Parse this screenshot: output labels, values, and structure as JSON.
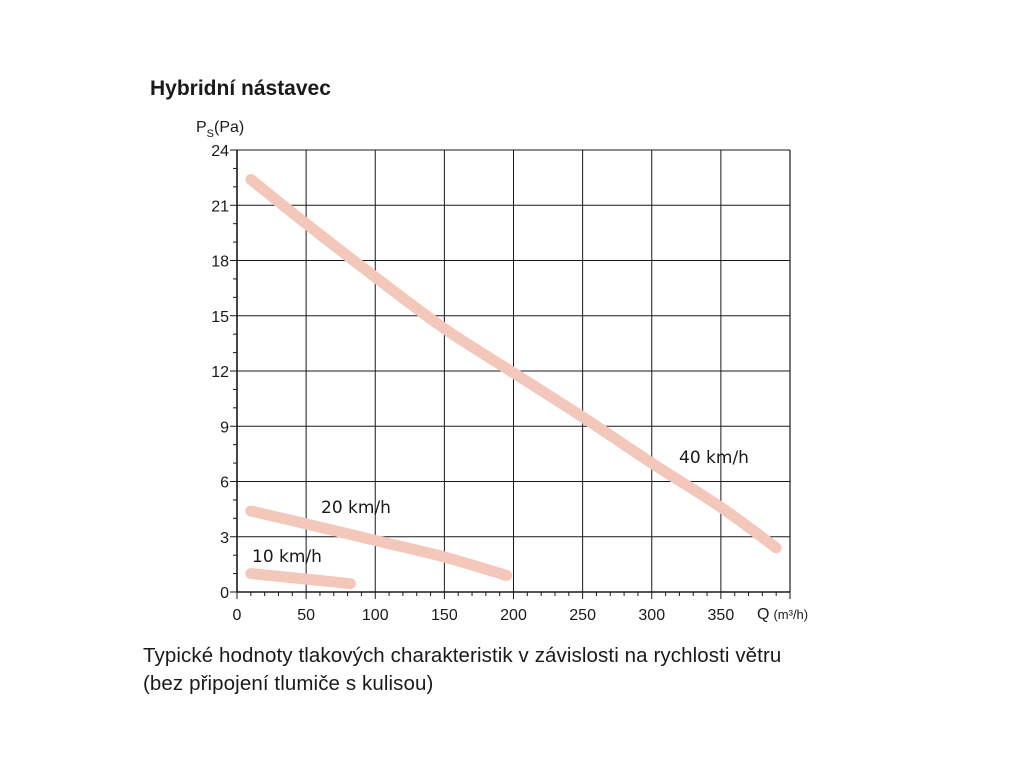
{
  "chart_data": {
    "type": "line",
    "title": "Hybridní nástavec",
    "ylabel": {
      "main": "P",
      "sub": "S",
      "unit": "(Pa)"
    },
    "xlabel": {
      "main": "Q",
      "unit": "(m³/h)"
    },
    "xlim": [
      0,
      400
    ],
    "ylim": [
      0,
      24
    ],
    "x_ticks": [
      "0",
      "50",
      "100",
      "150",
      "200",
      "250",
      "300",
      "350"
    ],
    "y_ticks": [
      "0",
      "3",
      "6",
      "9",
      "12",
      "15",
      "18",
      "21",
      "24"
    ],
    "grid": true,
    "series_color": "#f4c7bb",
    "series": [
      {
        "name": "40 km/h",
        "points": [
          [
            10,
            22.4
          ],
          [
            50,
            20.0
          ],
          [
            100,
            17.1
          ],
          [
            150,
            14.3
          ],
          [
            200,
            11.9
          ],
          [
            250,
            9.5
          ],
          [
            300,
            7.0
          ],
          [
            350,
            4.6
          ],
          [
            390,
            2.4
          ]
        ]
      },
      {
        "name": "20 km/h",
        "points": [
          [
            10,
            4.4
          ],
          [
            50,
            3.7
          ],
          [
            100,
            2.8
          ],
          [
            150,
            1.9
          ],
          [
            195,
            0.9
          ]
        ]
      },
      {
        "name": "10 km/h",
        "points": [
          [
            10,
            1.0
          ],
          [
            50,
            0.7
          ],
          [
            82,
            0.45
          ]
        ]
      }
    ]
  },
  "caption": {
    "line1": "Typické hodnoty tlakových charakteristik v závislosti na rychlosti větru",
    "line2": "(bez připojení tlumiče s kulisou)"
  }
}
